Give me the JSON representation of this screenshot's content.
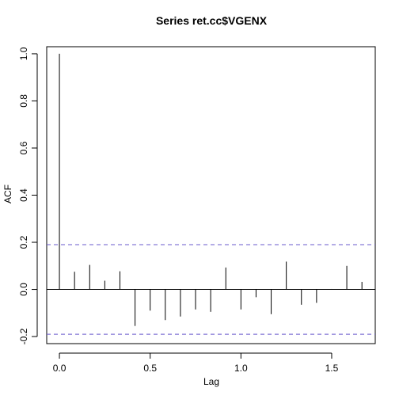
{
  "chart_data": {
    "type": "bar",
    "title": "Series  ret.cc$VGENX",
    "xlabel": "Lag",
    "ylabel": "ACF",
    "xlim": [
      -0.07,
      1.74
    ],
    "ylim": [
      -0.23,
      1.03
    ],
    "xticks": [
      0,
      0.5,
      1,
      1.5
    ],
    "xtick_labels": [
      "0.0",
      "0.5",
      "1.0",
      "1.5"
    ],
    "yticks": [
      -0.2,
      0,
      0.2,
      0.4,
      0.6,
      0.8,
      1
    ],
    "ytick_labels": [
      "-0.2",
      "0.0",
      "0.2",
      "0.4",
      "0.6",
      "0.8",
      "1.0"
    ],
    "grid": false,
    "confidence_band": 0.19,
    "confidence_band_color": "#6a5acd",
    "bar_color": "#000000",
    "lags": [
      0,
      0.0833,
      0.1667,
      0.25,
      0.3333,
      0.4167,
      0.5,
      0.5833,
      0.6667,
      0.75,
      0.8333,
      0.9167,
      1.0,
      1.0833,
      1.1667,
      1.25,
      1.3333,
      1.4167,
      1.5,
      1.5833,
      1.6667
    ],
    "values": [
      1.0,
      0.075,
      0.104,
      0.037,
      0.077,
      -0.155,
      -0.09,
      -0.13,
      -0.115,
      -0.085,
      -0.095,
      0.093,
      -0.085,
      -0.033,
      -0.105,
      0.118,
      -0.065,
      -0.057,
      0.002,
      0.1,
      0.032
    ]
  }
}
